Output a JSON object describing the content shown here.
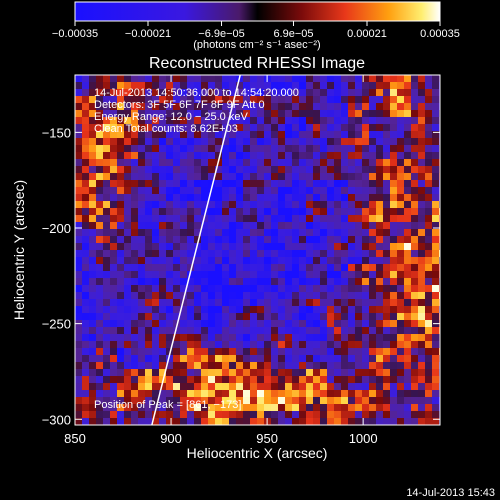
{
  "chart_data": {
    "type": "heatmap",
    "title": "Reconstructed RHESSI Image",
    "xlabel": "Heliocentric X (arcsec)",
    "ylabel": "Heliocentric Y (arcsec)",
    "xlim": [
      850,
      1040
    ],
    "ylim": [
      -303,
      -120
    ],
    "x_ticks": [
      850,
      900,
      950,
      1000
    ],
    "y_ticks": [
      -150,
      -200,
      -250,
      -300
    ],
    "x_tick_labels": [
      "850",
      "900",
      "950",
      "1000"
    ],
    "y_tick_labels": [
      "−150",
      "−200",
      "−250",
      "−300"
    ],
    "colorbar": {
      "colormap": "blue-purple-red-yellow-white",
      "range": [
        -0.00035,
        0.00035
      ],
      "ticks": [
        -0.00035,
        -0.00021,
        -6.9e-05,
        6.9e-05,
        0.00021,
        0.00035
      ],
      "tick_labels": [
        "−0.00035",
        "−0.00021",
        "−6.9e−05",
        "6.9e−05",
        "0.00021",
        "0.00035"
      ],
      "unit_label": "(photons cm⁻² s⁻¹ asec⁻²)"
    },
    "limb_line": {
      "x": [
        890,
        936
      ],
      "y": [
        -303,
        -120
      ]
    },
    "annotations": [
      "14‑Jul‑2013 14:50:36.000 to 14:54:20.000",
      "Detectors: 3F 5F 6F 7F 8F 9F  Att 0",
      "Energy Range: 12.0 − 25.0 keV",
      "Clean    Total counts: 8.62E+03",
      "Position of Peak = [861, −173]"
    ],
    "timestamp": "14‑Jul‑2013 15:43",
    "colors": {
      "background": "#000000",
      "text": "#ffffff"
    }
  }
}
